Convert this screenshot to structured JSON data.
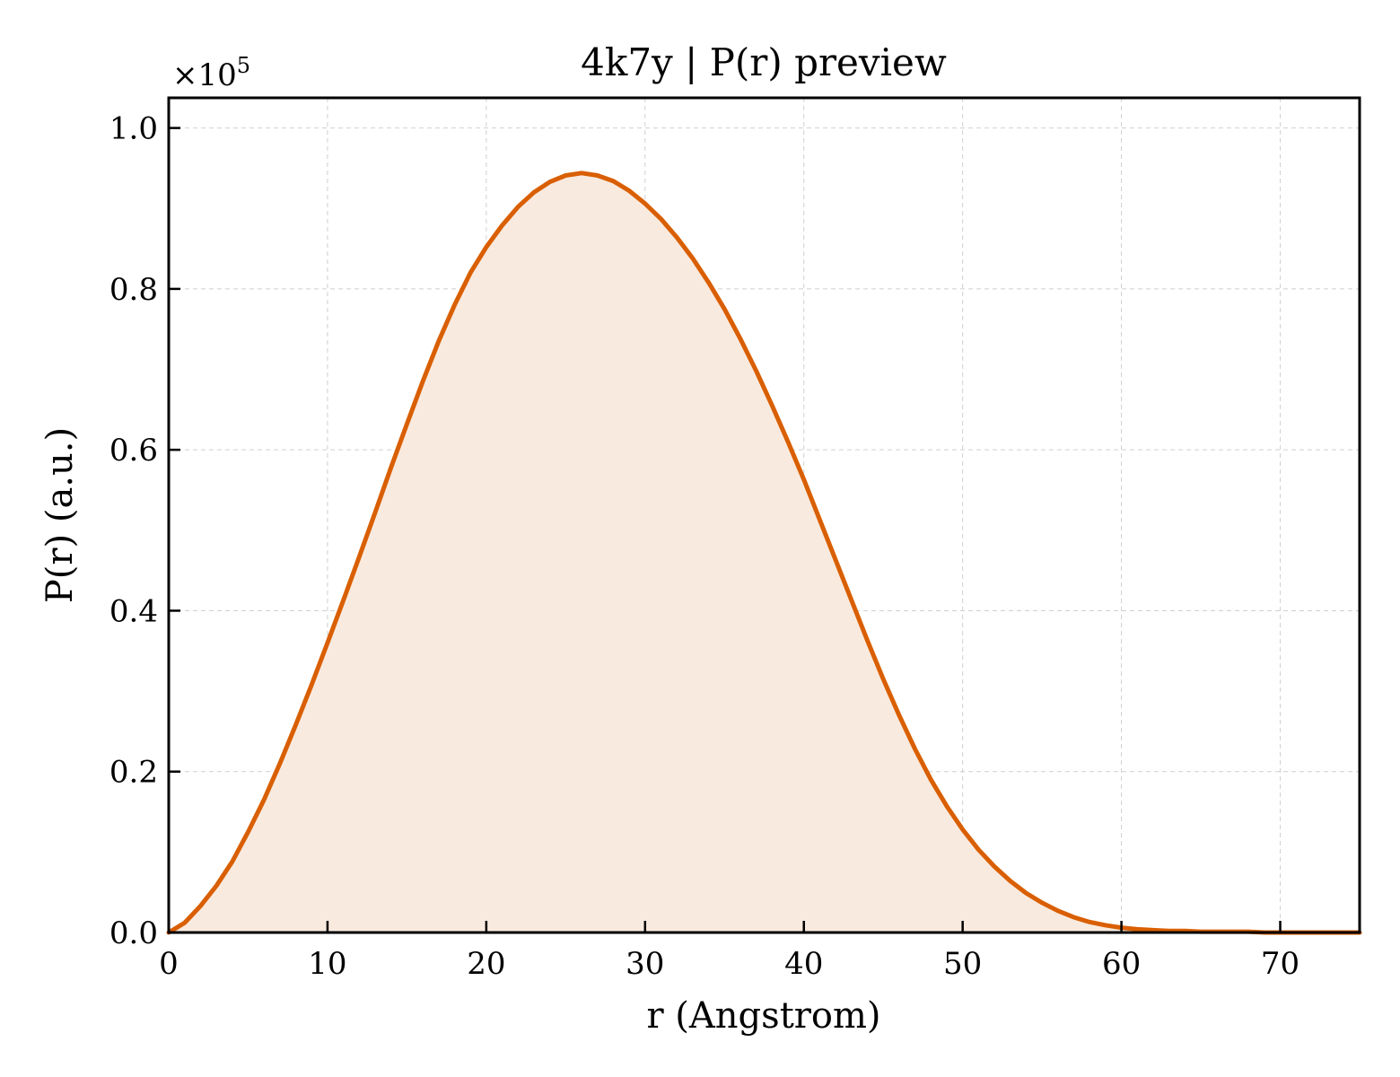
{
  "chart_data": {
    "type": "area",
    "title": "4k7y | P(r) preview",
    "xlabel": "r (Angstrom)",
    "ylabel": "P(r) (a.u.)",
    "y_scale_label": "×10",
    "y_scale_exponent": "5",
    "xlim": [
      0,
      75
    ],
    "ylim": [
      0,
      1.0375
    ],
    "xticks": [
      0,
      10,
      20,
      30,
      40,
      50,
      60,
      70
    ],
    "xtick_labels": [
      "0",
      "10",
      "20",
      "30",
      "40",
      "50",
      "60",
      "70"
    ],
    "yticks": [
      0.0,
      0.2,
      0.4,
      0.6,
      0.8,
      1.0
    ],
    "ytick_labels": [
      "0.0",
      "0.2",
      "0.4",
      "0.6",
      "0.8",
      "1.0"
    ],
    "grid": true,
    "colors": {
      "line": "#d95f02",
      "fill": "#f9eadf",
      "grid": "#d0d0d0"
    },
    "x": [
      0,
      1,
      2,
      3,
      4,
      5,
      6,
      7,
      8,
      9,
      10,
      11,
      12,
      13,
      14,
      15,
      16,
      17,
      18,
      19,
      20,
      21,
      22,
      23,
      24,
      25,
      26,
      27,
      28,
      29,
      30,
      31,
      32,
      33,
      34,
      35,
      36,
      37,
      38,
      39,
      40,
      41,
      42,
      43,
      44,
      45,
      46,
      47,
      48,
      49,
      50,
      51,
      52,
      53,
      54,
      55,
      56,
      57,
      58,
      59,
      60,
      61,
      62,
      63,
      64,
      65,
      66,
      67,
      68,
      69,
      70,
      71,
      72,
      73,
      74,
      75
    ],
    "series": [
      {
        "values": [
          0.0,
          0.012,
          0.033,
          0.058,
          0.088,
          0.125,
          0.165,
          0.21,
          0.258,
          0.308,
          0.36,
          0.413,
          0.467,
          0.522,
          0.578,
          0.632,
          0.685,
          0.735,
          0.78,
          0.82,
          0.852,
          0.879,
          0.902,
          0.92,
          0.933,
          0.941,
          0.944,
          0.941,
          0.934,
          0.922,
          0.906,
          0.887,
          0.864,
          0.838,
          0.808,
          0.775,
          0.738,
          0.698,
          0.655,
          0.61,
          0.563,
          0.513,
          0.463,
          0.413,
          0.363,
          0.315,
          0.27,
          0.228,
          0.19,
          0.157,
          0.128,
          0.103,
          0.082,
          0.064,
          0.049,
          0.037,
          0.027,
          0.019,
          0.013,
          0.009,
          0.006,
          0.004,
          0.003,
          0.002,
          0.002,
          0.001,
          0.001,
          0.001,
          0.001,
          0.0,
          0.0,
          0.0,
          0.0,
          0.0,
          0.0,
          0.0
        ]
      }
    ]
  }
}
